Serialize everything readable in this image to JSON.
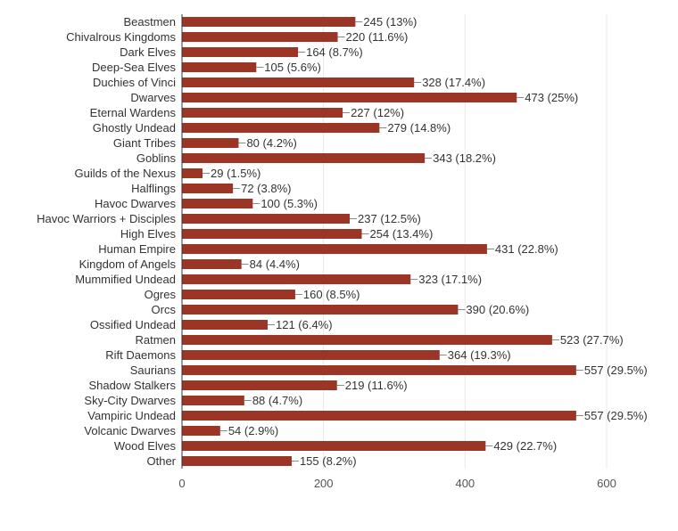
{
  "chart_data": {
    "type": "bar",
    "orientation": "horizontal",
    "title": "",
    "xlabel": "",
    "ylabel": "",
    "xlim": [
      0,
      600
    ],
    "xticks": [
      0,
      200,
      400,
      600
    ],
    "grid": true,
    "bar_color": "#9b3526",
    "categories": [
      "Beastmen",
      "Chivalrous Kingdoms",
      "Dark Elves",
      "Deep-Sea Elves",
      "Duchies of Vinci",
      "Dwarves",
      "Eternal Wardens",
      "Ghostly Undead",
      "Giant Tribes",
      "Goblins",
      "Guilds of the Nexus",
      "Halflings",
      "Havoc Dwarves",
      "Havoc Warriors + Disciples",
      "High Elves",
      "Human Empire",
      "Kingdom of Angels",
      "Mummified Undead",
      "Ogres",
      "Orcs",
      "Ossified Undead",
      "Ratmen",
      "Rift Daemons",
      "Saurians",
      "Shadow Stalkers",
      "Sky-City Dwarves",
      "Vampiric Undead",
      "Volcanic Dwarves",
      "Wood Elves",
      "Other"
    ],
    "values": [
      245,
      220,
      164,
      105,
      328,
      473,
      227,
      279,
      80,
      343,
      29,
      72,
      100,
      237,
      254,
      431,
      84,
      323,
      160,
      390,
      121,
      523,
      364,
      557,
      219,
      88,
      557,
      54,
      429,
      155
    ],
    "labels": [
      "245 (13%)",
      "220 (11.6%)",
      "164 (8.7%)",
      "105 (5.6%)",
      "328 (17.4%)",
      "473 (25%)",
      "227 (12%)",
      "279 (14.8%)",
      "80 (4.2%)",
      "343 (18.2%)",
      "29 (1.5%)",
      "72 (3.8%)",
      "100 (5.3%)",
      "237 (12.5%)",
      "254 (13.4%)",
      "431 (22.8%)",
      "84 (4.4%)",
      "323 (17.1%)",
      "160 (8.5%)",
      "390 (20.6%)",
      "121 (6.4%)",
      "523 (27.7%)",
      "364 (19.3%)",
      "557 (29.5%)",
      "219 (11.6%)",
      "88 (4.7%)",
      "557 (29.5%)",
      "54 (2.9%)",
      "429 (22.7%)",
      "155 (8.2%)"
    ]
  }
}
